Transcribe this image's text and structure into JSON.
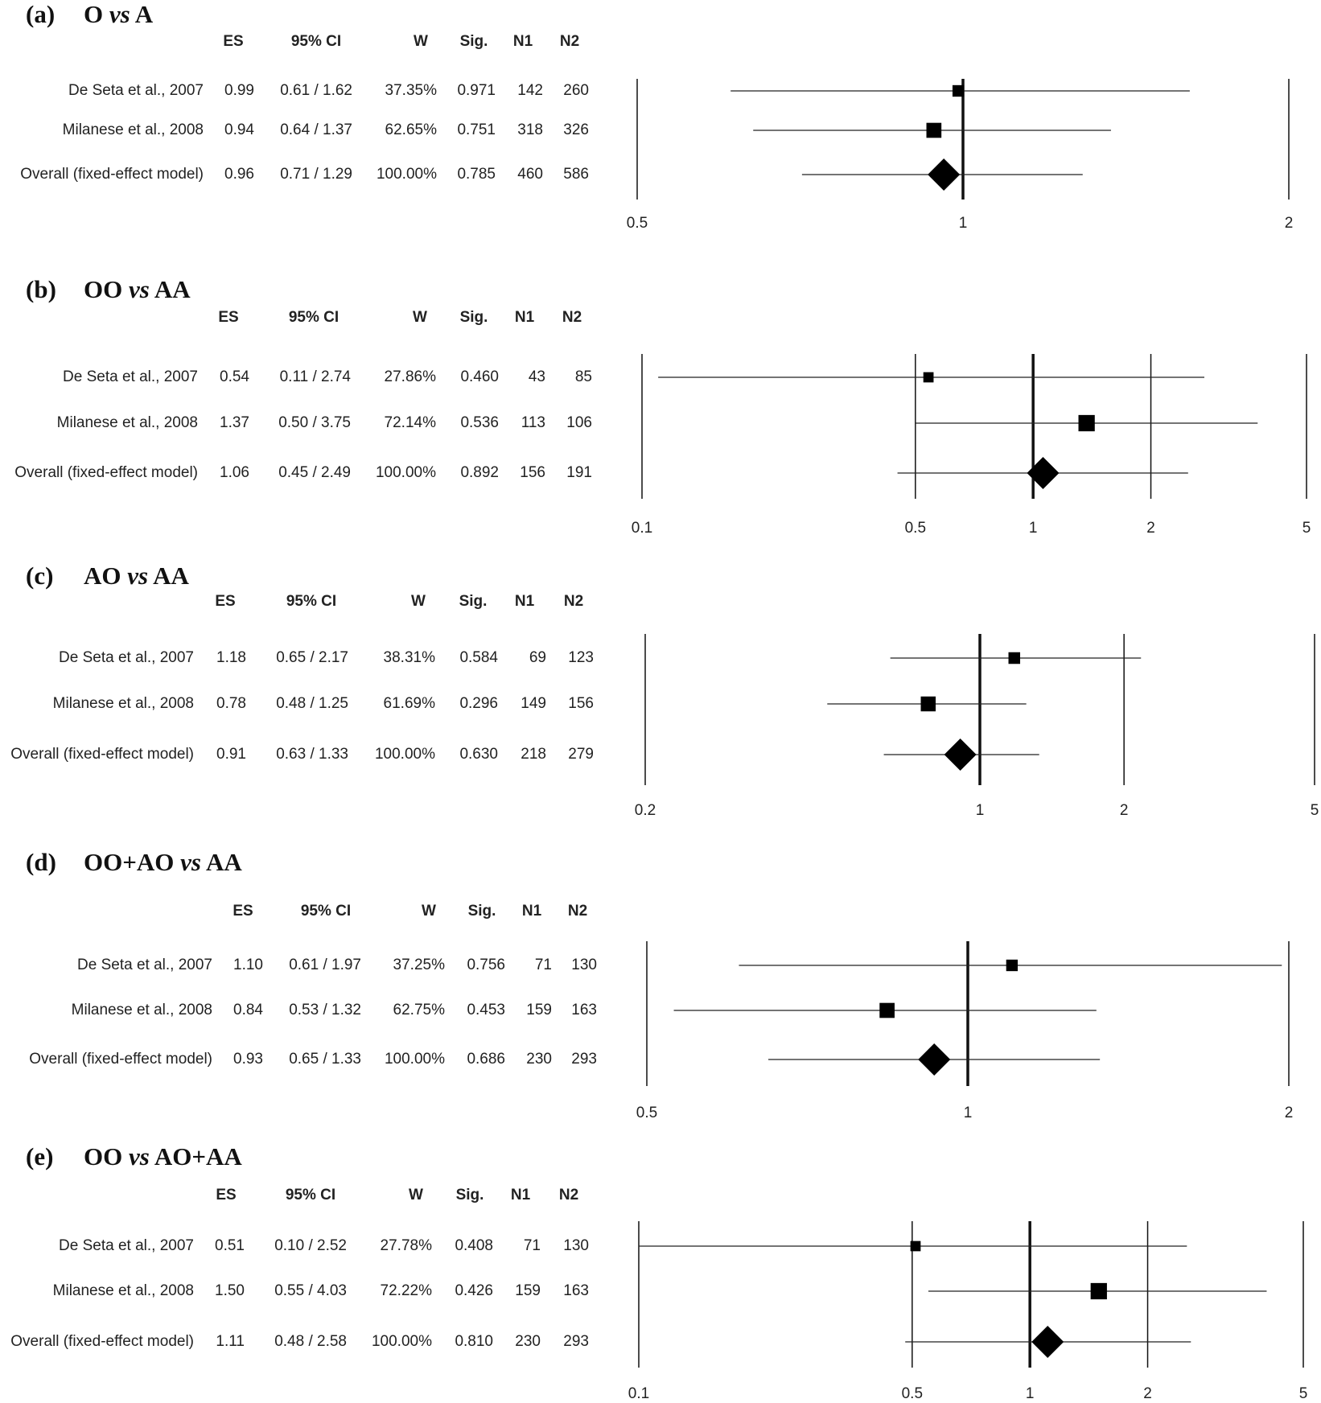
{
  "chart_data": [
    {
      "type": "forest",
      "label": "(a)",
      "title": [
        "O",
        "vs",
        "A"
      ],
      "columns": [
        "ES",
        "95% CI",
        "W",
        "Sig.",
        "N1",
        "N2"
      ],
      "rows": [
        {
          "study": "De Seta et al., 2007",
          "es": "0.99",
          "ci": "0.61 / 1.62",
          "w": "37.35%",
          "sig": "0.971",
          "n1": "142",
          "n2": "260",
          "es_v": 0.99,
          "lo": 0.61,
          "hi": 1.62
        },
        {
          "study": "Milanese et al., 2008",
          "es": "0.94",
          "ci": "0.64 / 1.37",
          "w": "62.65%",
          "sig": "0.751",
          "n1": "318",
          "n2": "326",
          "es_v": 0.94,
          "lo": 0.64,
          "hi": 1.37
        },
        {
          "study": "Overall (fixed-effect model)",
          "es": "0.96",
          "ci": "0.71 / 1.29",
          "w": "100.00%",
          "sig": "0.785",
          "n1": "460",
          "n2": "586",
          "es_v": 0.96,
          "lo": 0.71,
          "hi": 1.29
        }
      ],
      "axis_ticks": [
        0.5,
        1,
        2
      ],
      "tick_labels": [
        "0.5",
        "1",
        "2"
      ],
      "xlim": [
        0.5,
        2
      ],
      "ref_lines": [
        1
      ]
    },
    {
      "type": "forest",
      "label": "(b)",
      "title": [
        "OO",
        "vs",
        "AA"
      ],
      "columns": [
        "ES",
        "95% CI",
        "W",
        "Sig.",
        "N1",
        "N2"
      ],
      "rows": [
        {
          "study": "De Seta et al., 2007",
          "es": "0.54",
          "ci": "0.11 / 2.74",
          "w": "27.86%",
          "sig": "0.460",
          "n1": "43",
          "n2": "85",
          "es_v": 0.54,
          "lo": 0.11,
          "hi": 2.74
        },
        {
          "study": "Milanese et al., 2008",
          "es": "1.37",
          "ci": "0.50 / 3.75",
          "w": "72.14%",
          "sig": "0.536",
          "n1": "113",
          "n2": "106",
          "es_v": 1.37,
          "lo": 0.5,
          "hi": 3.75
        },
        {
          "study": "Overall (fixed-effect model)",
          "es": "1.06",
          "ci": "0.45 / 2.49",
          "w": "100.00%",
          "sig": "0.892",
          "n1": "156",
          "n2": "191",
          "es_v": 1.06,
          "lo": 0.45,
          "hi": 2.49
        }
      ],
      "axis_ticks": [
        0.1,
        0.5,
        1,
        2,
        5
      ],
      "tick_labels": [
        "0.1",
        "0.5",
        "1",
        "2",
        "5"
      ],
      "xlim": [
        0.1,
        5
      ],
      "ref_lines": [
        1
      ]
    },
    {
      "type": "forest",
      "label": "(c)",
      "title": [
        "AO",
        "vs",
        "AA"
      ],
      "columns": [
        "ES",
        "95% CI",
        "W",
        "Sig.",
        "N1",
        "N2"
      ],
      "rows": [
        {
          "study": "De Seta et al., 2007",
          "es": "1.18",
          "ci": "0.65 / 2.17",
          "w": "38.31%",
          "sig": "0.584",
          "n1": "69",
          "n2": "123",
          "es_v": 1.18,
          "lo": 0.65,
          "hi": 2.17
        },
        {
          "study": "Milanese et al., 2008",
          "es": "0.78",
          "ci": "0.48 / 1.25",
          "w": "61.69%",
          "sig": "0.296",
          "n1": "149",
          "n2": "156",
          "es_v": 0.78,
          "lo": 0.48,
          "hi": 1.25
        },
        {
          "study": "Overall (fixed-effect model)",
          "es": "0.91",
          "ci": "0.63 / 1.33",
          "w": "100.00%",
          "sig": "0.630",
          "n1": "218",
          "n2": "279",
          "es_v": 0.91,
          "lo": 0.63,
          "hi": 1.33
        }
      ],
      "axis_ticks": [
        0.2,
        1,
        2,
        5
      ],
      "tick_labels": [
        "0.2",
        "1",
        "2",
        "5"
      ],
      "xlim": [
        0.2,
        5
      ],
      "ref_lines": [
        1
      ]
    },
    {
      "type": "forest",
      "label": "(d)",
      "title": [
        "OO+AO",
        "vs",
        "AA"
      ],
      "columns": [
        "ES",
        "95% CI",
        "W",
        "Sig.",
        "N1",
        "N2"
      ],
      "rows": [
        {
          "study": "De Seta et al., 2007",
          "es": "1.10",
          "ci": "0.61 / 1.97",
          "w": "37.25%",
          "sig": "0.756",
          "n1": "71",
          "n2": "130",
          "es_v": 1.1,
          "lo": 0.61,
          "hi": 1.97
        },
        {
          "study": "Milanese et al., 2008",
          "es": "0.84",
          "ci": "0.53 / 1.32",
          "w": "62.75%",
          "sig": "0.453",
          "n1": "159",
          "n2": "163",
          "es_v": 0.84,
          "lo": 0.53,
          "hi": 1.32
        },
        {
          "study": "Overall (fixed-effect model)",
          "es": "0.93",
          "ci": "0.65 / 1.33",
          "w": "100.00%",
          "sig": "0.686",
          "n1": "230",
          "n2": "293",
          "es_v": 0.93,
          "lo": 0.65,
          "hi": 1.33
        }
      ],
      "axis_ticks": [
        0.5,
        1,
        2
      ],
      "tick_labels": [
        "0.5",
        "1",
        "2"
      ],
      "xlim": [
        0.5,
        2
      ],
      "ref_lines": [
        1
      ]
    },
    {
      "type": "forest",
      "label": "(e)",
      "title": [
        "OO",
        "vs",
        "AO+AA"
      ],
      "columns": [
        "ES",
        "95% CI",
        "W",
        "Sig.",
        "N1",
        "N2"
      ],
      "rows": [
        {
          "study": "De Seta et al., 2007",
          "es": "0.51",
          "ci": "0.10 / 2.52",
          "w": "27.78%",
          "sig": "0.408",
          "n1": "71",
          "n2": "130",
          "es_v": 0.51,
          "lo": 0.1,
          "hi": 2.52
        },
        {
          "study": "Milanese et al., 2008",
          "es": "1.50",
          "ci": "0.55 / 4.03",
          "w": "72.22%",
          "sig": "0.426",
          "n1": "159",
          "n2": "163",
          "es_v": 1.5,
          "lo": 0.55,
          "hi": 4.03
        },
        {
          "study": "Overall (fixed-effect model)",
          "es": "1.11",
          "ci": "0.48 / 2.58",
          "w": "100.00%",
          "sig": "0.810",
          "n1": "230",
          "n2": "293",
          "es_v": 1.11,
          "lo": 0.48,
          "hi": 2.58
        }
      ],
      "axis_ticks": [
        0.1,
        0.5,
        1,
        2,
        5
      ],
      "tick_labels": [
        "0.1",
        "0.5",
        "1",
        "2",
        "5"
      ],
      "xlim": [
        0.1,
        5
      ],
      "ref_lines": [
        1
      ]
    }
  ]
}
